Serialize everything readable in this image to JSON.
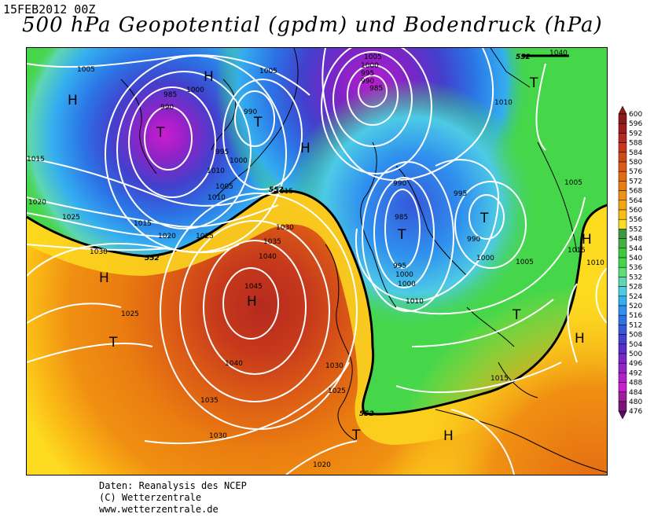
{
  "header": {
    "date": "15FEB2012 00Z",
    "title": "500 hPa Geopotential (gpdm) und Bodendruck (hPa)"
  },
  "credits": {
    "line1": "Daten: Reanalysis des NCEP",
    "line2": "(C) Wetterzentrale",
    "line3": "www.wetterzentrale.de"
  },
  "legend": {
    "levels": [
      "600",
      "596",
      "592",
      "588",
      "584",
      "580",
      "576",
      "572",
      "568",
      "564",
      "560",
      "556",
      "552",
      "548",
      "544",
      "540",
      "536",
      "532",
      "528",
      "524",
      "520",
      "516",
      "512",
      "508",
      "504",
      "500",
      "496",
      "492",
      "488",
      "484",
      "480",
      "476"
    ],
    "colors": [
      "#8b1a1a",
      "#a01c1c",
      "#b52a1e",
      "#c6391c",
      "#d04a18",
      "#db5a16",
      "#e46a12",
      "#ea7d10",
      "#f09012",
      "#f5a414",
      "#fbbc16",
      "#fddb20",
      "#3a9a3a",
      "#41b141",
      "#3cc93c",
      "#46d64a",
      "#5fde78",
      "#5fd6b0",
      "#4dcae6",
      "#34aef0",
      "#2f90ee",
      "#2b74e6",
      "#3658da",
      "#4240cc",
      "#5a2ec8",
      "#7a25c6",
      "#9422c6",
      "#b41fcc",
      "#cd1cd0",
      "#9c1c9c",
      "#7a1478",
      "#5e0e5e"
    ]
  },
  "map": {
    "isobar_labels": [
      "1005",
      "1005",
      "1000",
      "985",
      "990",
      "990",
      "995",
      "1000",
      "1005",
      "1010",
      "1010",
      "1015",
      "1015",
      "1020",
      "1025",
      "1025",
      "1020",
      "1030",
      "1035",
      "1030",
      "1040",
      "1045",
      "1040",
      "1035",
      "1030",
      "1030",
      "1025",
      "1025",
      "1020",
      "1015",
      "1005",
      "1000",
      "995",
      "990",
      "985",
      "1000",
      "1000",
      "995",
      "990",
      "985",
      "990",
      "995",
      "1000",
      "1005",
      "1010",
      "1015",
      "1010",
      "1005",
      "1015",
      "1010",
      "1040",
      "1030",
      "1025",
      "1020",
      "1015",
      "1010",
      "1005",
      "990"
    ],
    "highs_label": "H",
    "lows_label": "T",
    "h552_label": "552"
  }
}
